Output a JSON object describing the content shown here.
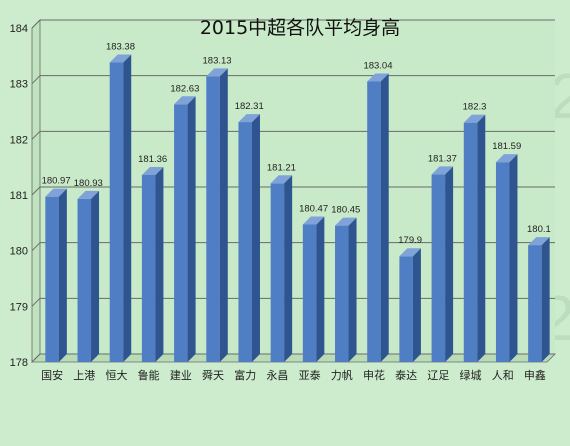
{
  "chart_data": {
    "type": "bar",
    "title": "2015中超各队平均身高",
    "categories": [
      "国安",
      "上港",
      "恒大",
      "鲁能",
      "建业",
      "舜天",
      "富力",
      "永昌",
      "亚泰",
      "力帆",
      "申花",
      "泰达",
      "辽足",
      "绿城",
      "人和",
      "申鑫"
    ],
    "values": [
      180.97,
      180.93,
      183.38,
      181.36,
      182.63,
      183.13,
      182.31,
      181.21,
      180.47,
      180.45,
      183.04,
      179.9,
      181.37,
      182.3,
      181.59,
      180.1
    ],
    "data_labels": [
      "180.97",
      "180.93",
      "183.38",
      "181.36",
      "182.63",
      "183.13",
      "182.31",
      "181.21",
      "180.47",
      "180.45",
      "183.04",
      "179.9",
      "181.37",
      "182.3",
      "181.59",
      "180.1"
    ],
    "ylim": [
      178,
      184
    ],
    "yticks": [
      "178",
      "179",
      "180",
      "181",
      "182",
      "183",
      "184"
    ],
    "grid": true,
    "legend": "none",
    "colors": {
      "bar_front": "#4f7ec4",
      "bar_side": "#2f5590",
      "bar_top": "#7fa3d8",
      "background": "#cdeccd",
      "grid": "#6a6a6a"
    }
  }
}
